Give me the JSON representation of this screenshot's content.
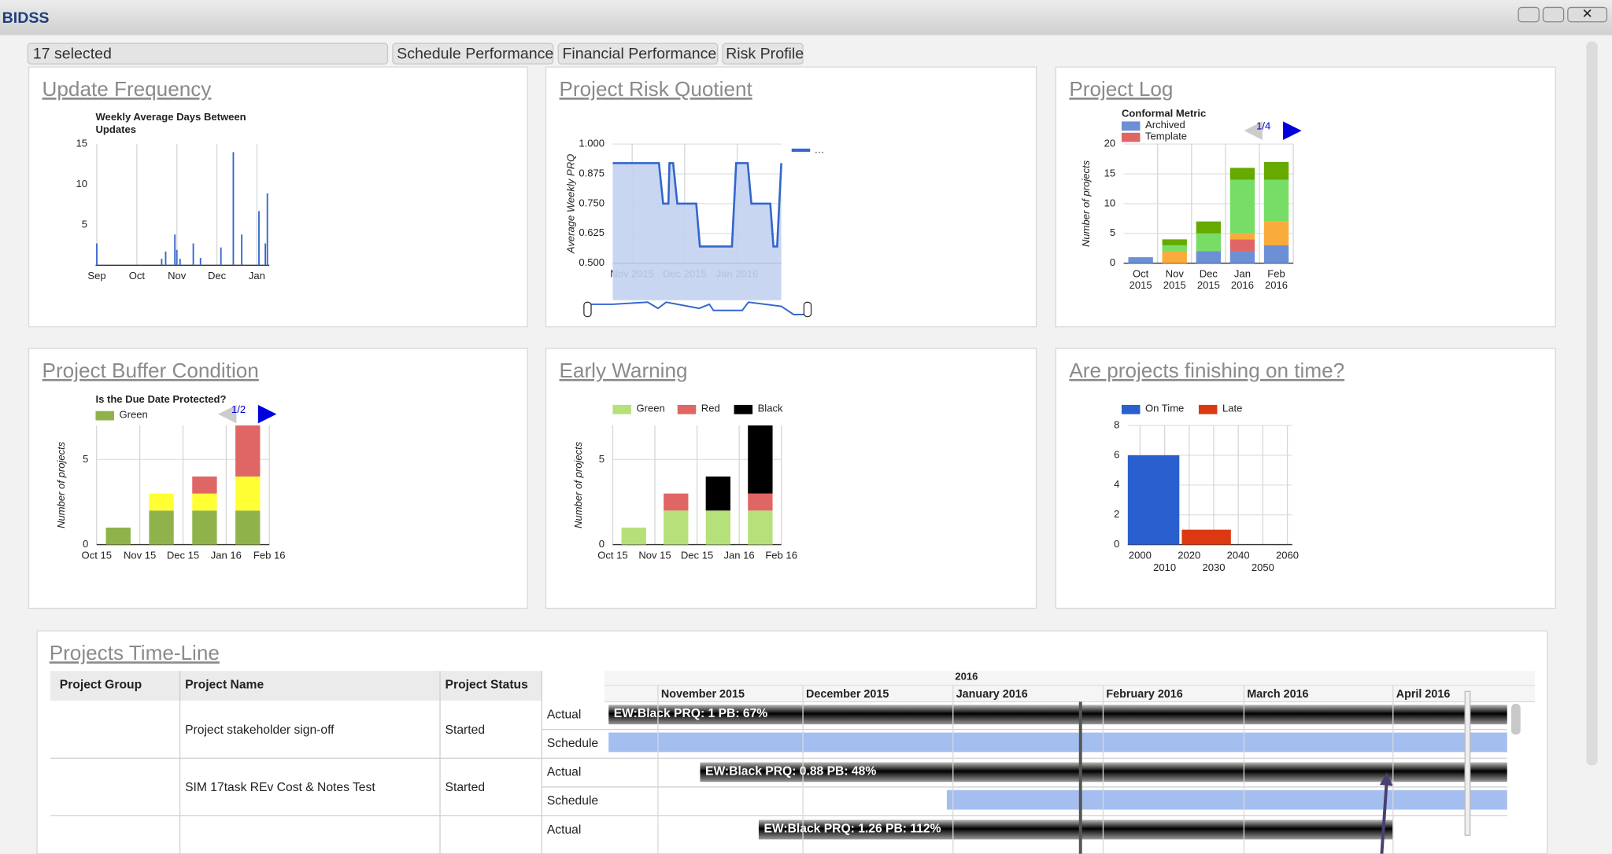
{
  "window": {
    "title": "BIDSS"
  },
  "toolbar": {
    "selection": "17 selected",
    "tabs": [
      "Schedule Performance",
      "Financial Performance",
      "Risk Profile"
    ]
  },
  "chart_data": [
    {
      "type": "bar",
      "panel_title": "Update Frequency",
      "title": "Weekly Average Days Between Updates",
      "x": [
        0,
        1.62,
        1.72,
        1.95,
        2.0,
        2.08,
        2.41,
        2.59,
        3.1,
        3.41,
        3.62,
        4.05,
        4.21,
        4.26
      ],
      "values": [
        2.7,
        0.8,
        1.7,
        3.8,
        1.9,
        0.8,
        2.7,
        0.9,
        2.2,
        14,
        3.8,
        6.7,
        2.7,
        8.9
      ],
      "color": "#3366cc",
      "xlim": [
        -0.03,
        4.31
      ],
      "xticks": [
        {
          "value": 0,
          "label": "Sep"
        },
        {
          "value": 1,
          "label": "Oct"
        },
        {
          "value": 2,
          "label": "Nov"
        },
        {
          "value": 3,
          "label": "Dec"
        },
        {
          "value": 4,
          "label": "Jan"
        }
      ],
      "ylim": [
        0,
        15
      ],
      "yticks": [
        5,
        10,
        15
      ],
      "grid": true
    },
    {
      "type": "area",
      "panel_title": "Project Risk Quotient",
      "y_label": "Average Weekly PRQ",
      "x": [
        -0.37,
        0.51,
        0.59,
        0.69,
        0.71,
        0.78,
        0.86,
        1.22,
        1.29,
        1.9,
        1.98,
        2.2,
        2.27,
        2.63,
        2.69,
        2.76,
        2.84
      ],
      "values": [
        0.92,
        0.92,
        0.75,
        0.75,
        0.92,
        0.92,
        0.75,
        0.75,
        0.57,
        0.57,
        0.92,
        0.92,
        0.75,
        0.75,
        0.57,
        0.57,
        0.92
      ],
      "series_name": "…",
      "color": "#3366cc",
      "fill": "#c2d1f0",
      "xlim": [
        -0.37,
        2.84
      ],
      "xticks": [
        {
          "value": 0,
          "label": "Nov 2015"
        },
        {
          "value": 1,
          "label": "Dec 2015"
        },
        {
          "value": 2,
          "label": "Jan 2016"
        }
      ],
      "ylim": [
        0.5,
        1.0
      ],
      "yticks": [
        {
          "value": 0.5,
          "label": "0.500"
        },
        0.625,
        {
          "value": 0.75,
          "label": "0.750"
        },
        0.875,
        {
          "value": 1,
          "label": "1.000"
        }
      ],
      "grid": true
    },
    {
      "type": "stacked_bar",
      "panel_title": "Project Log",
      "legend_title": "Conformal Metric",
      "y_label": "Number of projects",
      "pager": "1/4",
      "categories": [
        [
          "Oct",
          "2015"
        ],
        [
          "Nov",
          "2015"
        ],
        [
          "Dec",
          "2015"
        ],
        [
          "Jan",
          "2016"
        ],
        [
          "Feb",
          "2016"
        ]
      ],
      "series": [
        {
          "name": "Archived",
          "color": "#6d8fd6",
          "values": [
            1,
            0,
            2,
            2,
            3
          ]
        },
        {
          "name": "Template",
          "color": "#e06666",
          "values": [
            0,
            0,
            0,
            2,
            0
          ]
        },
        {
          "color": "#f9ac3b",
          "values": [
            0,
            2,
            0,
            1,
            4
          ]
        },
        {
          "color": "#77dd66",
          "values": [
            0,
            1,
            3,
            9,
            7
          ]
        },
        {
          "color": "#66aa00",
          "values": [
            0,
            1,
            2,
            2,
            3
          ]
        }
      ],
      "ylim": [
        0,
        20
      ],
      "yticks": [
        0,
        5,
        10,
        15,
        20
      ],
      "grid": true
    },
    {
      "type": "stacked_bar",
      "panel_title": "Project Buffer Condition",
      "title": "Is the Due Date Protected?",
      "y_label": "Number of projects",
      "pager": "1/2",
      "x": [
        0.5,
        1.5,
        2.5,
        3.5
      ],
      "series": [
        {
          "name": "Green",
          "color": "#8fb34a",
          "values": [
            1,
            2,
            2,
            2
          ]
        },
        {
          "color": "#ffff33",
          "values": [
            0,
            1,
            1,
            2
          ]
        },
        {
          "color": "#e06666",
          "values": [
            0,
            0,
            1,
            3
          ]
        }
      ],
      "xlim": [
        0,
        4
      ],
      "xticks": [
        {
          "value": 0,
          "label": "Oct 15"
        },
        {
          "value": 1,
          "label": "Nov 15"
        },
        {
          "value": 2,
          "label": "Dec 15"
        },
        {
          "value": 3,
          "label": "Jan 16"
        },
        {
          "value": 4,
          "label": "Feb 16"
        }
      ],
      "ylim": [
        0,
        7
      ],
      "yticks": [
        0,
        5
      ],
      "grid": true
    },
    {
      "type": "stacked_bar",
      "panel_title": "Early Warning",
      "y_label": "Number of projects",
      "x": [
        0.5,
        1.5,
        2.5,
        3.5
      ],
      "series": [
        {
          "name": "Green",
          "color": "#b6e07a",
          "values": [
            1,
            2,
            2,
            2
          ]
        },
        {
          "name": "Red",
          "color": "#e06666",
          "values": [
            0,
            1,
            0,
            1
          ]
        },
        {
          "name": "Black",
          "color": "#000000",
          "values": [
            0,
            0,
            2,
            4
          ]
        }
      ],
      "xlim": [
        0,
        4
      ],
      "xticks": [
        {
          "value": 0,
          "label": "Oct 15"
        },
        {
          "value": 1,
          "label": "Nov 15"
        },
        {
          "value": 2,
          "label": "Dec 15"
        },
        {
          "value": 3,
          "label": "Jan 16"
        },
        {
          "value": 4,
          "label": "Feb 16"
        }
      ],
      "ylim": [
        0,
        7
      ],
      "yticks": [
        0,
        5
      ],
      "grid": true
    },
    {
      "type": "histogram",
      "panel_title": "Are projects finishing on time?",
      "series": [
        {
          "name": "On Time",
          "color": "#2a5fd0",
          "bins": [
            1995,
            2016
          ],
          "values": [
            6
          ]
        },
        {
          "name": "Late",
          "color": "#dc3912",
          "bins": [
            2017,
            2037
          ],
          "values": [
            1
          ]
        }
      ],
      "xlim": [
        1995,
        2062
      ],
      "xticks": [
        2000,
        2010,
        2020,
        2030,
        2040,
        2050,
        2060
      ],
      "ylim": [
        0,
        8
      ],
      "yticks": [
        0,
        2,
        4,
        6,
        8
      ],
      "grid": true
    }
  ],
  "timeline": {
    "title": "Projects Time-Line",
    "columns": [
      "Project Group",
      "Project Name",
      "Project Status"
    ],
    "row_kinds": [
      "Actual",
      "Schedule"
    ],
    "year": "2016",
    "months": [
      "November 2015",
      "December 2015",
      "January 2016",
      "February 2016",
      "March 2016",
      "April 2016"
    ],
    "rows": [
      {
        "name": "Project stakeholder sign-off",
        "status": "Started",
        "bar": "EW:Black PRQ: 1 PB: 67%"
      },
      {
        "name": "SIM 17task REv Cost & Notes Test",
        "status": "Started",
        "bar": "EW:Black PRQ: 0.88 PB: 48%"
      },
      {
        "bar": "EW:Black PRQ: 1.26 PB: 112%"
      }
    ]
  }
}
